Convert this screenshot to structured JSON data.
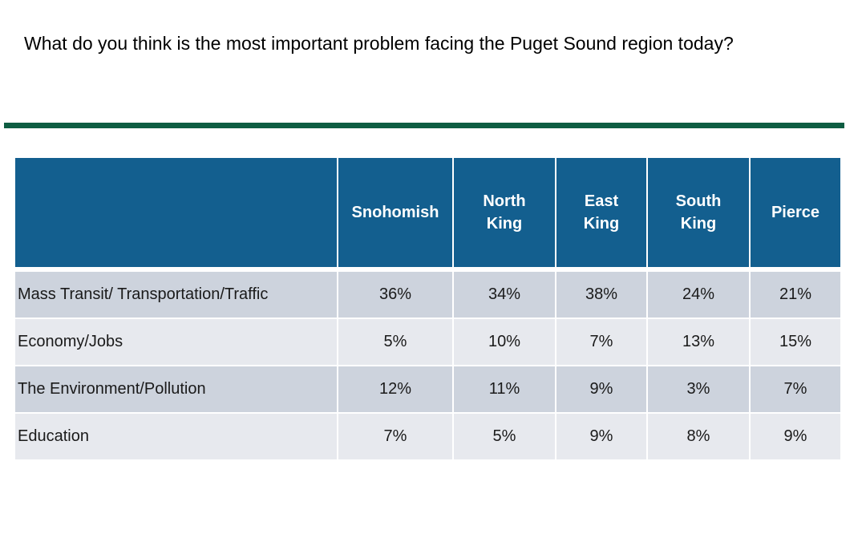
{
  "title": "What do you think is the most important problem facing the Puget Sound region today?",
  "colors": {
    "header_bg": "#135f8f",
    "rule": "#0e5d42",
    "row_odd": "#cdd3dd",
    "row_even": "#e7e9ee"
  },
  "chart_data": {
    "type": "table",
    "title": "What do you think is the most important problem facing the Puget Sound region today?",
    "columns": [
      "Snohomish",
      "North King",
      "East King",
      "South King",
      "Pierce"
    ],
    "rows": [
      {
        "label": "Mass Transit/ Transportation/Traffic",
        "values": [
          "36%",
          "34%",
          "38%",
          "24%",
          "21%"
        ]
      },
      {
        "label": "Economy/Jobs",
        "values": [
          "5%",
          "10%",
          "7%",
          "13%",
          "15%"
        ]
      },
      {
        "label": "The Environment/Pollution",
        "values": [
          "12%",
          "11%",
          "9%",
          "3%",
          "7%"
        ]
      },
      {
        "label": "Education",
        "values": [
          "7%",
          "5%",
          "9%",
          "8%",
          "9%"
        ]
      }
    ]
  }
}
